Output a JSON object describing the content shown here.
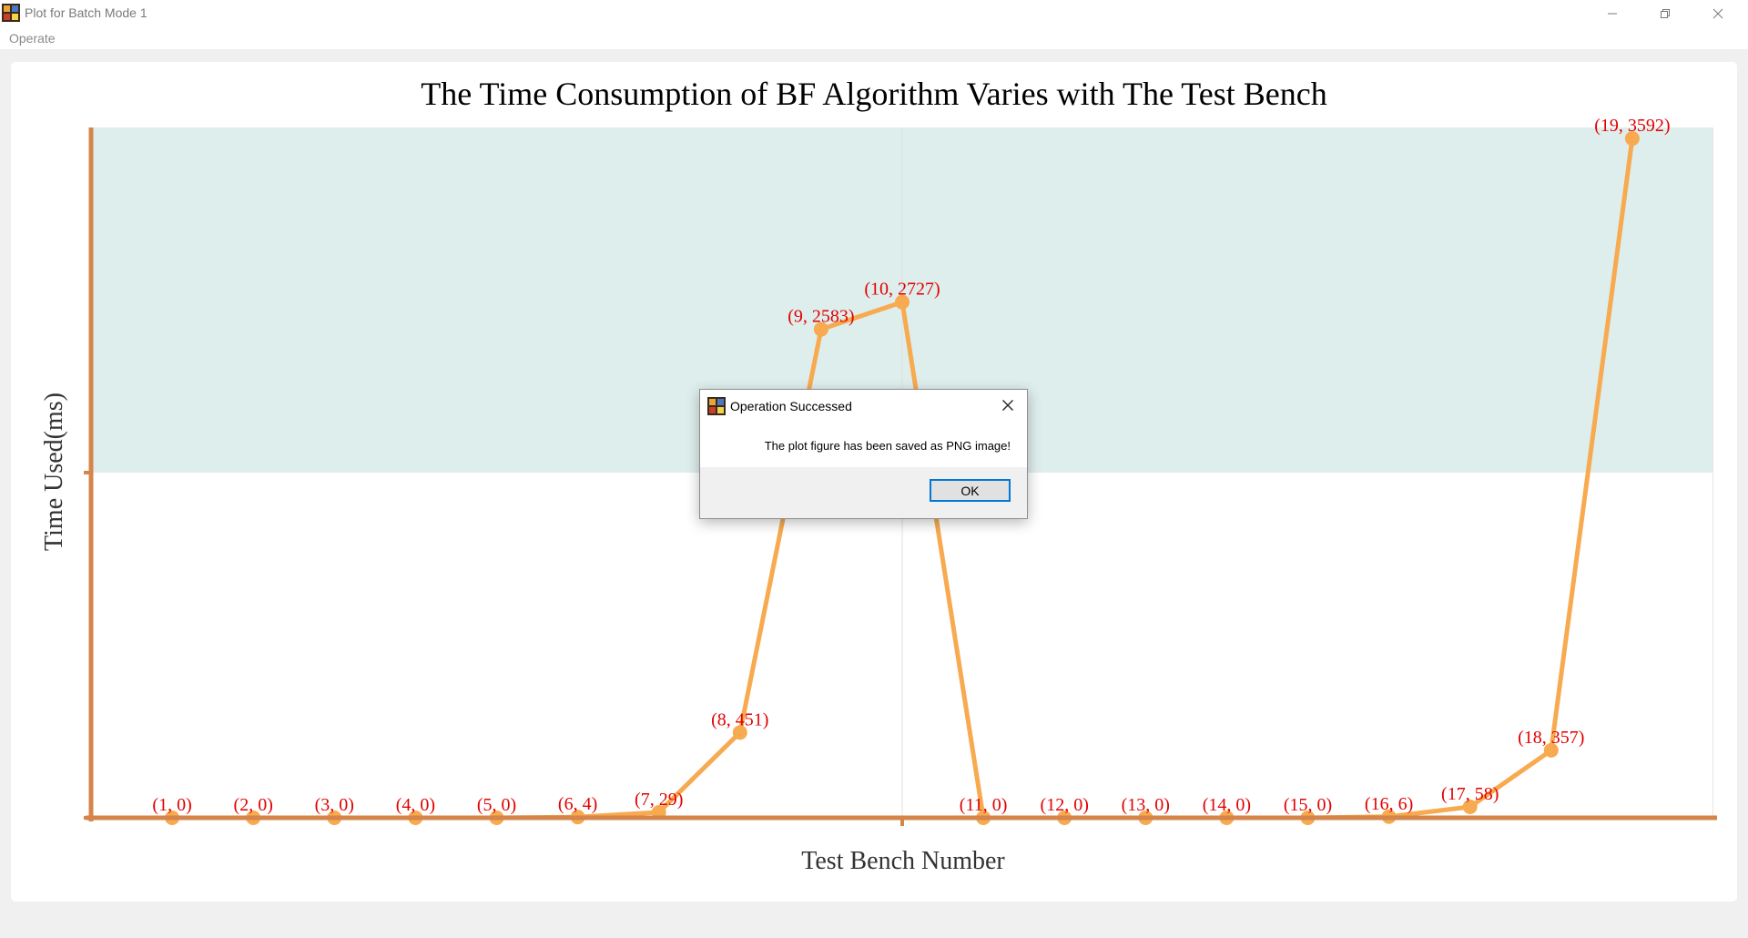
{
  "window": {
    "title": "Plot for Batch Mode 1",
    "icon": "colorful-app-icon"
  },
  "menu": {
    "items": [
      "Operate"
    ]
  },
  "chart_data": {
    "type": "line",
    "title": "The Time Consumption of BF Algorithm Varies with The Test Bench",
    "xlabel": "Test Bench Number",
    "ylabel": "Time Used(ms)",
    "x": [
      1,
      2,
      3,
      4,
      5,
      6,
      7,
      8,
      9,
      10,
      11,
      12,
      13,
      14,
      15,
      16,
      17,
      18,
      19
    ],
    "y": [
      0,
      0,
      0,
      0,
      0,
      4,
      29,
      451,
      2583,
      2727,
      0,
      0,
      0,
      0,
      0,
      6,
      58,
      357,
      3592
    ],
    "point_labels": [
      "(1, 0)",
      "(2, 0)",
      "(3, 0)",
      "(4, 0)",
      "(5, 0)",
      "(6, 4)",
      "(7, 29)",
      "(8, 451)",
      "(9, 2583)",
      "(10, 2727)",
      "(11, 0)",
      "(12, 0)",
      "(13, 0)",
      "(14, 0)",
      "(15, 0)",
      "(16, 6)",
      "(17, 58)",
      "(18, 357)",
      "(19, 3592)"
    ],
    "xlim": [
      0,
      20
    ],
    "ylim": [
      0,
      3650
    ],
    "band": [
      1825,
      3650
    ],
    "colors": {
      "line": "#f7aa4f",
      "axis": "#d5844a",
      "label": "#e20000",
      "band": "#deeeec"
    }
  },
  "dialog": {
    "title": "Operation Successed",
    "message": "The plot figure has been saved as PNG image!",
    "ok_label": "OK"
  }
}
